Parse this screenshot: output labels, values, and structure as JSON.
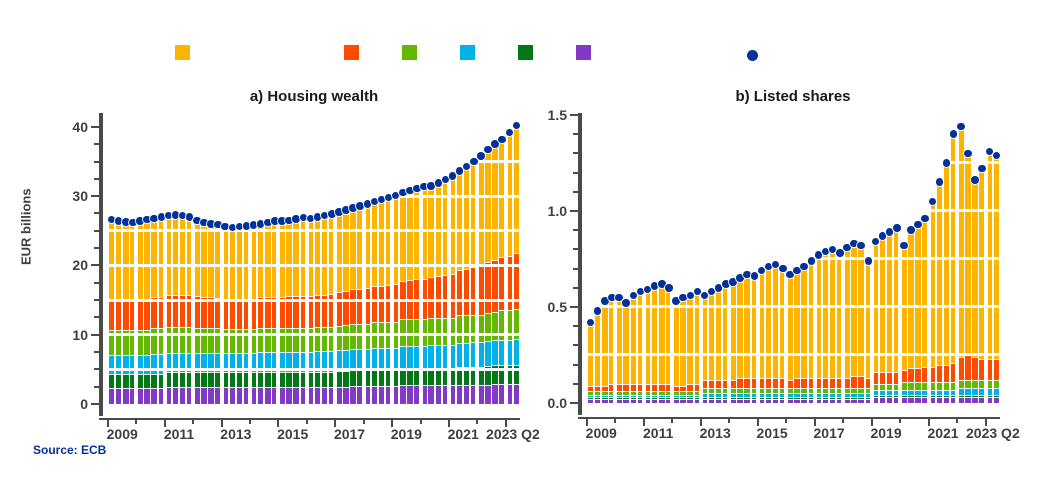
{
  "titles": {
    "panel_a": "a) Housing wealth",
    "panel_b": "b) Listed shares"
  },
  "y_axis_label": "EUR billions",
  "source_note": {
    "text": "Source: ECB",
    "color": "#003299"
  },
  "colors": {
    "amber": "#FFB400",
    "red_orange": "#FF4B00",
    "green": "#65B800",
    "light_blue": "#00B1EA",
    "dark_green": "#007816",
    "purple": "#8139C6",
    "navy_marker": "#003299",
    "axis": "#4a4a4a",
    "tick_text": "#3f3f3f"
  },
  "legend": {
    "swatches": [
      {
        "name": "amber"
      },
      {
        "name": "red_orange"
      },
      {
        "name": "green"
      },
      {
        "name": "light_blue"
      },
      {
        "name": "dark_green"
      },
      {
        "name": "purple"
      }
    ],
    "marker": {
      "name": "navy_marker"
    }
  },
  "chart_data": [
    {
      "panel": "a",
      "type": "bar",
      "subtype": "stacked-quarterly-bars-with-total-dot-markers",
      "title": "a) Housing wealth",
      "ylabel": "EUR billions",
      "x_start": "2009 Q1",
      "x_end": "2023 Q2",
      "ylim": [
        0,
        42
      ],
      "y_max_tick": 40,
      "grid_step": 5,
      "minor_step": 2.5,
      "major_every": 4,
      "y_ticks": [
        {
          "v": 0,
          "label": "0"
        },
        {
          "v": 10,
          "label": "10"
        },
        {
          "v": 20,
          "label": "20"
        },
        {
          "v": 30,
          "label": "30"
        },
        {
          "v": 40,
          "label": "40"
        }
      ],
      "x_ticks": [
        {
          "q": 2,
          "label": "2009"
        },
        {
          "q": 10,
          "label": "2011"
        },
        {
          "q": 18,
          "label": "2013"
        },
        {
          "q": 26,
          "label": "2015"
        },
        {
          "q": 34,
          "label": "2017"
        },
        {
          "q": 42,
          "label": "2019"
        },
        {
          "q": 50,
          "label": "2021"
        },
        {
          "q": 57,
          "label": "2023 Q2"
        }
      ],
      "stack_order": [
        "purple",
        "dark_green",
        "light_blue",
        "green",
        "red_orange",
        "amber"
      ],
      "series": [
        {
          "name": "purple",
          "values": [
            2.3,
            2.3,
            2.3,
            2.3,
            2.3,
            2.3,
            2.3,
            2.3,
            2.4,
            2.4,
            2.4,
            2.4,
            2.4,
            2.4,
            2.4,
            2.4,
            2.4,
            2.4,
            2.4,
            2.4,
            2.4,
            2.4,
            2.4,
            2.4,
            2.4,
            2.4,
            2.4,
            2.4,
            2.4,
            2.4,
            2.4,
            2.4,
            2.5,
            2.5,
            2.6,
            2.6,
            2.6,
            2.6,
            2.6,
            2.6,
            2.6,
            2.7,
            2.7,
            2.7,
            2.7,
            2.7,
            2.7,
            2.7,
            2.7,
            2.8,
            2.8,
            2.8,
            2.8,
            2.8,
            2.9,
            2.9,
            2.9,
            2.9
          ]
        },
        {
          "name": "dark_green",
          "values": [
            2.1,
            2.1,
            2.1,
            2.1,
            2.1,
            2.1,
            2.1,
            2.1,
            2.2,
            2.2,
            2.2,
            2.2,
            2.2,
            2.2,
            2.2,
            2.2,
            2.2,
            2.2,
            2.2,
            2.2,
            2.2,
            2.2,
            2.2,
            2.2,
            2.2,
            2.2,
            2.2,
            2.2,
            2.2,
            2.2,
            2.2,
            2.2,
            2.3,
            2.3,
            2.4,
            2.4,
            2.4,
            2.4,
            2.4,
            2.4,
            2.4,
            2.5,
            2.5,
            2.5,
            2.5,
            2.5,
            2.5,
            2.5,
            2.5,
            2.6,
            2.6,
            2.6,
            2.6,
            2.7,
            2.7,
            2.7,
            2.7,
            2.7
          ]
        },
        {
          "name": "light_blue",
          "values": [
            2.7,
            2.7,
            2.7,
            2.7,
            2.7,
            2.7,
            2.8,
            2.8,
            2.8,
            2.8,
            2.8,
            2.8,
            2.8,
            2.8,
            2.8,
            2.8,
            2.8,
            2.8,
            2.8,
            2.8,
            2.8,
            2.9,
            2.9,
            2.9,
            2.9,
            2.9,
            2.9,
            2.9,
            2.9,
            3.0,
            3.0,
            3.0,
            3.0,
            3.0,
            3.0,
            3.0,
            3.0,
            3.1,
            3.1,
            3.1,
            3.1,
            3.2,
            3.2,
            3.2,
            3.2,
            3.3,
            3.3,
            3.3,
            3.3,
            3.4,
            3.4,
            3.5,
            3.5,
            3.6,
            3.6,
            3.7,
            3.7,
            3.8
          ]
        },
        {
          "name": "green",
          "values": [
            3.6,
            3.6,
            3.6,
            3.6,
            3.6,
            3.6,
            3.7,
            3.7,
            3.7,
            3.7,
            3.7,
            3.7,
            3.6,
            3.6,
            3.5,
            3.5,
            3.4,
            3.4,
            3.4,
            3.4,
            3.4,
            3.4,
            3.4,
            3.4,
            3.4,
            3.5,
            3.5,
            3.5,
            3.5,
            3.5,
            3.5,
            3.5,
            3.5,
            3.6,
            3.6,
            3.6,
            3.6,
            3.7,
            3.7,
            3.7,
            3.7,
            3.8,
            3.8,
            3.8,
            3.8,
            3.9,
            3.9,
            3.9,
            3.9,
            4.0,
            4.0,
            4.0,
            4.0,
            4.1,
            4.1,
            4.2,
            4.2,
            4.3
          ]
        },
        {
          "name": "red_orange",
          "values": [
            4.3,
            4.3,
            4.4,
            4.4,
            4.5,
            4.5,
            4.6,
            4.6,
            4.7,
            4.7,
            4.7,
            4.6,
            4.6,
            4.5,
            4.5,
            4.4,
            4.4,
            4.4,
            4.4,
            4.4,
            4.4,
            4.5,
            4.5,
            4.5,
            4.5,
            4.6,
            4.6,
            4.6,
            4.6,
            4.7,
            4.7,
            4.8,
            4.8,
            4.9,
            5.0,
            5.0,
            5.1,
            5.2,
            5.3,
            5.4,
            5.5,
            5.6,
            5.7,
            5.8,
            5.9,
            6.0,
            6.1,
            6.2,
            6.3,
            6.5,
            6.7,
            6.9,
            7.1,
            7.3,
            7.5,
            7.7,
            7.9,
            8.1
          ]
        },
        {
          "name": "amber",
          "values": [
            11.6,
            11.4,
            11.2,
            11.1,
            11.2,
            11.4,
            11.3,
            11.5,
            11.4,
            11.5,
            11.4,
            11.3,
            10.9,
            10.7,
            10.6,
            10.6,
            10.4,
            10.3,
            10.4,
            10.5,
            10.6,
            10.6,
            10.8,
            11.0,
            11.0,
            10.9,
            11.1,
            11.3,
            11.2,
            11.2,
            11.4,
            11.5,
            11.6,
            11.7,
            11.7,
            12.0,
            12.2,
            12.2,
            12.4,
            12.6,
            12.8,
            12.7,
            12.9,
            13.1,
            13.3,
            13.1,
            13.4,
            13.8,
            14.2,
            14.3,
            14.8,
            15.2,
            15.8,
            16.2,
            16.7,
            17.0,
            17.8,
            18.4
          ]
        }
      ]
    },
    {
      "panel": "b",
      "type": "bar",
      "subtype": "stacked-quarterly-bars-with-total-dot-markers",
      "title": "b) Listed shares",
      "x_start": "2009 Q1",
      "x_end": "2023 Q2",
      "ylim": [
        0,
        1.51
      ],
      "y_max_tick": 1.5,
      "grid_step": 0.25,
      "minor_step": 0.1,
      "major_every": 5,
      "y_ticks": [
        {
          "v": 0,
          "label": "0.0"
        },
        {
          "v": 0.5,
          "label": "0.5"
        },
        {
          "v": 1.0,
          "label": "1.0"
        },
        {
          "v": 1.5,
          "label": "1.5"
        }
      ],
      "x_ticks": [
        {
          "q": 2,
          "label": "2009"
        },
        {
          "q": 10,
          "label": "2011"
        },
        {
          "q": 18,
          "label": "2013"
        },
        {
          "q": 26,
          "label": "2015"
        },
        {
          "q": 34,
          "label": "2017"
        },
        {
          "q": 42,
          "label": "2019"
        },
        {
          "q": 50,
          "label": "2021"
        },
        {
          "q": 57,
          "label": "2023 Q2"
        }
      ],
      "stack_order": [
        "purple",
        "dark_green",
        "light_blue",
        "green",
        "red_orange",
        "amber"
      ],
      "series": [
        {
          "name": "purple",
          "values": [
            0.02,
            0.02,
            0.02,
            0.02,
            0.02,
            0.02,
            0.02,
            0.02,
            0.02,
            0.02,
            0.02,
            0.02,
            0.02,
            0.02,
            0.02,
            0.02,
            0.02,
            0.02,
            0.02,
            0.02,
            0.02,
            0.02,
            0.02,
            0.02,
            0.02,
            0.02,
            0.02,
            0.02,
            0.02,
            0.02,
            0.02,
            0.02,
            0.02,
            0.02,
            0.02,
            0.02,
            0.02,
            0.02,
            0.02,
            0.02,
            0.03,
            0.03,
            0.03,
            0.03,
            0.03,
            0.03,
            0.03,
            0.03,
            0.03,
            0.03,
            0.03,
            0.03,
            0.03,
            0.03,
            0.03,
            0.03,
            0.03,
            0.03
          ]
        },
        {
          "name": "dark_green",
          "values": [
            0.01,
            0.01,
            0.01,
            0.01,
            0.01,
            0.01,
            0.01,
            0.01,
            0.01,
            0.01,
            0.01,
            0.01,
            0.01,
            0.01,
            0.01,
            0.01,
            0.01,
            0.01,
            0.01,
            0.01,
            0.01,
            0.01,
            0.01,
            0.01,
            0.01,
            0.01,
            0.01,
            0.01,
            0.01,
            0.01,
            0.01,
            0.01,
            0.01,
            0.01,
            0.01,
            0.01,
            0.01,
            0.01,
            0.01,
            0.01,
            0.01,
            0.01,
            0.01,
            0.01,
            0.01,
            0.01,
            0.01,
            0.01,
            0.01,
            0.01,
            0.01,
            0.01,
            0.01,
            0.01,
            0.01,
            0.01,
            0.01,
            0.01
          ]
        },
        {
          "name": "light_blue",
          "values": [
            0.01,
            0.01,
            0.01,
            0.01,
            0.01,
            0.01,
            0.01,
            0.01,
            0.01,
            0.01,
            0.01,
            0.01,
            0.01,
            0.01,
            0.01,
            0.01,
            0.02,
            0.02,
            0.02,
            0.02,
            0.02,
            0.02,
            0.02,
            0.02,
            0.02,
            0.02,
            0.02,
            0.02,
            0.02,
            0.02,
            0.02,
            0.02,
            0.02,
            0.02,
            0.02,
            0.02,
            0.02,
            0.02,
            0.02,
            0.02,
            0.03,
            0.03,
            0.03,
            0.03,
            0.03,
            0.03,
            0.03,
            0.03,
            0.03,
            0.03,
            0.03,
            0.03,
            0.04,
            0.04,
            0.04,
            0.04,
            0.04,
            0.04
          ]
        },
        {
          "name": "green",
          "values": [
            0.02,
            0.02,
            0.02,
            0.02,
            0.02,
            0.02,
            0.02,
            0.02,
            0.02,
            0.02,
            0.02,
            0.02,
            0.02,
            0.02,
            0.02,
            0.02,
            0.03,
            0.03,
            0.03,
            0.03,
            0.03,
            0.03,
            0.03,
            0.03,
            0.03,
            0.03,
            0.03,
            0.03,
            0.03,
            0.03,
            0.03,
            0.03,
            0.03,
            0.03,
            0.03,
            0.03,
            0.03,
            0.03,
            0.03,
            0.03,
            0.03,
            0.03,
            0.03,
            0.03,
            0.04,
            0.04,
            0.04,
            0.04,
            0.04,
            0.04,
            0.04,
            0.04,
            0.04,
            0.04,
            0.04,
            0.04,
            0.04,
            0.04
          ]
        },
        {
          "name": "red_orange",
          "values": [
            0.03,
            0.03,
            0.03,
            0.04,
            0.04,
            0.04,
            0.04,
            0.04,
            0.04,
            0.04,
            0.04,
            0.04,
            0.03,
            0.03,
            0.04,
            0.04,
            0.04,
            0.04,
            0.04,
            0.04,
            0.04,
            0.05,
            0.05,
            0.05,
            0.05,
            0.05,
            0.05,
            0.05,
            0.04,
            0.05,
            0.05,
            0.05,
            0.05,
            0.05,
            0.05,
            0.05,
            0.05,
            0.06,
            0.06,
            0.05,
            0.06,
            0.06,
            0.06,
            0.06,
            0.06,
            0.07,
            0.07,
            0.08,
            0.08,
            0.09,
            0.09,
            0.1,
            0.12,
            0.13,
            0.12,
            0.11,
            0.11,
            0.11
          ]
        },
        {
          "name": "amber",
          "values": [
            0.33,
            0.39,
            0.44,
            0.45,
            0.45,
            0.42,
            0.46,
            0.48,
            0.49,
            0.51,
            0.52,
            0.5,
            0.44,
            0.46,
            0.46,
            0.48,
            0.44,
            0.46,
            0.48,
            0.5,
            0.51,
            0.52,
            0.54,
            0.53,
            0.56,
            0.58,
            0.59,
            0.57,
            0.55,
            0.56,
            0.58,
            0.61,
            0.64,
            0.66,
            0.67,
            0.65,
            0.68,
            0.69,
            0.68,
            0.61,
            0.68,
            0.71,
            0.73,
            0.75,
            0.65,
            0.72,
            0.75,
            0.77,
            0.86,
            0.95,
            1.05,
            1.19,
            1.2,
            1.05,
            0.92,
            0.99,
            1.08,
            1.06
          ]
        }
      ]
    }
  ]
}
